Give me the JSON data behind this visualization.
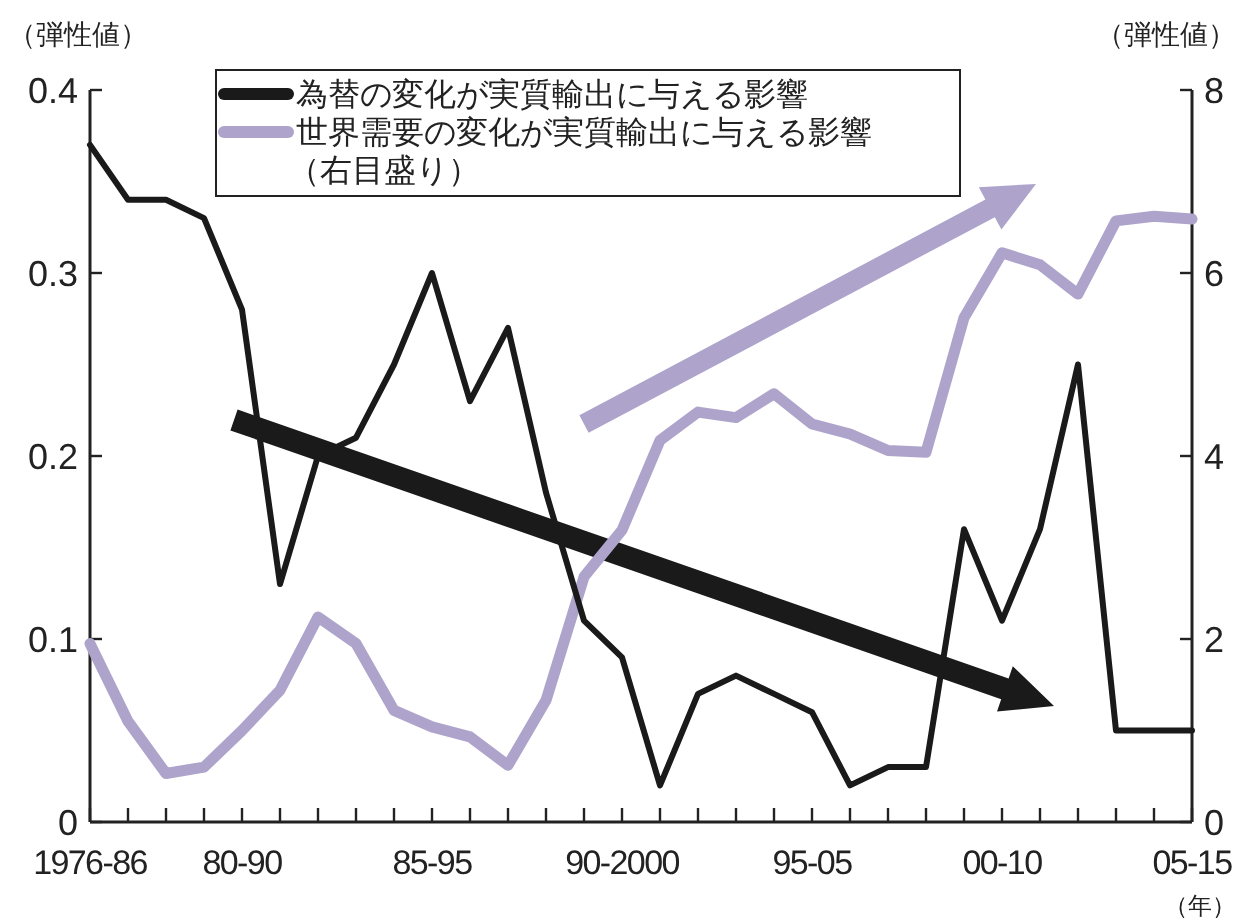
{
  "chart_data": {
    "type": "line",
    "ylabel": "（弾性値）",
    "y2label": "（弾性値）",
    "xlabel": "（年）",
    "categories": [
      "1976-86",
      null,
      null,
      null,
      "80-90",
      null,
      null,
      null,
      null,
      "85-95",
      null,
      null,
      null,
      null,
      "90-2000",
      null,
      null,
      null,
      null,
      "95-05",
      null,
      null,
      null,
      null,
      "00-10",
      null,
      null,
      null,
      null,
      "05-15"
    ],
    "series": [
      {
        "name": "為替の変化が実質輸出に与える影響",
        "color": "#1a1a1a",
        "values": [
          0.37,
          0.34,
          0.34,
          0.33,
          0.28,
          0.13,
          0.2,
          0.21,
          0.25,
          0.3,
          0.23,
          0.27,
          0.18,
          0.11,
          0.09,
          0.02,
          0.07,
          0.08,
          0.07,
          0.06,
          0.02,
          0.03,
          0.03,
          0.16,
          0.11,
          0.16,
          0.25,
          0.05,
          0.05,
          0.05
        ]
      },
      {
        "name": "世界需要の変化が実質輸出に与える影響（右目盛り）",
        "color": "#aea4cb",
        "axis": "y2",
        "values": [
          1.95,
          1.1,
          0.53,
          0.6,
          1.0,
          1.44,
          2.24,
          1.95,
          1.22,
          1.04,
          0.93,
          0.62,
          1.33,
          2.68,
          3.19,
          4.17,
          4.48,
          4.42,
          4.68,
          4.35,
          4.24,
          4.06,
          4.04,
          5.51,
          6.22,
          6.09,
          5.77,
          6.57,
          6.62,
          6.59
        ]
      }
    ],
    "ylim": [
      0,
      0.4
    ],
    "yticks": [
      0,
      0.1,
      0.2,
      0.3,
      0.4
    ],
    "y2lim": [
      0,
      8
    ],
    "y2ticks": [
      0,
      2,
      4,
      6,
      8
    ],
    "legend": "top",
    "grid": false,
    "marker": "none",
    "line_style": "solid"
  }
}
